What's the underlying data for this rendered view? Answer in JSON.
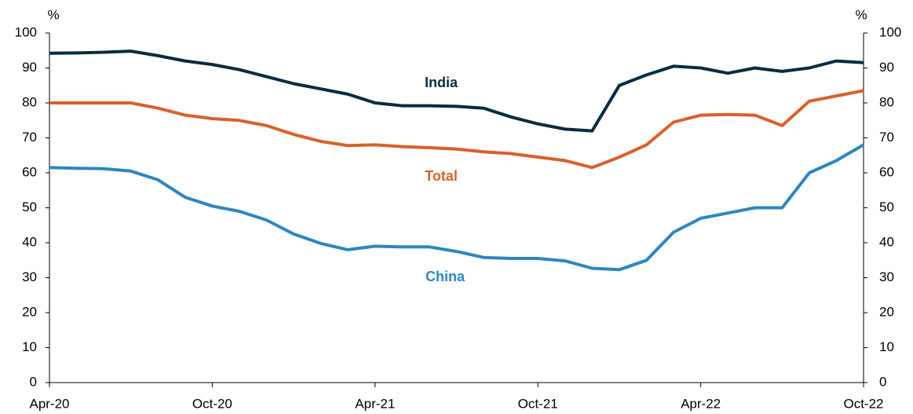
{
  "chart_data": {
    "type": "line",
    "y_unit_left": "%",
    "y_unit_right": "%",
    "categories": [
      "Apr-20",
      null,
      null,
      null,
      null,
      null,
      "Oct-20",
      null,
      null,
      null,
      null,
      null,
      "Apr-21",
      null,
      null,
      null,
      null,
      null,
      "Oct-21",
      null,
      null,
      null,
      null,
      null,
      "Apr-22",
      null,
      null,
      null,
      null,
      null,
      "Oct-22"
    ],
    "series": [
      {
        "name": "India",
        "color": "#0b2b40",
        "values": [
          94.2,
          94.3,
          94.5,
          94.8,
          93.5,
          92,
          91,
          89.5,
          87.5,
          85.5,
          84,
          82.5,
          80,
          79.2,
          79.2,
          79,
          78.5,
          76,
          74,
          72.5,
          72,
          85,
          88,
          90.5,
          90,
          88.5,
          90,
          89,
          90,
          92,
          91.5
        ]
      },
      {
        "name": "Total",
        "color": "#d9602b",
        "values": [
          80,
          80,
          80,
          80,
          78.5,
          76.5,
          75.5,
          75,
          73.5,
          71,
          69,
          67.8,
          68,
          67.5,
          67.2,
          66.8,
          66,
          65.5,
          64.5,
          63.5,
          61.5,
          64.5,
          68,
          74.5,
          76.5,
          76.7,
          76.5,
          73.5,
          80.5,
          82,
          83.5
        ]
      },
      {
        "name": "China",
        "color": "#2e86c1",
        "values": [
          61.5,
          61.3,
          61.2,
          60.5,
          58,
          53,
          50.5,
          49,
          46.5,
          42.5,
          39.8,
          38,
          39,
          38.8,
          38.8,
          37.5,
          35.8,
          35.5,
          35.5,
          34.8,
          32.7,
          32.3,
          35,
          43,
          47,
          48.5,
          50,
          50,
          60,
          63.5,
          68
        ]
      }
    ],
    "ylim": [
      0,
      100
    ],
    "yticks": [
      0,
      10,
      20,
      30,
      40,
      50,
      60,
      70,
      80,
      90,
      100
    ],
    "y2lim": [
      0,
      100
    ],
    "y2ticks": [
      0,
      10,
      20,
      30,
      40,
      50,
      60,
      70,
      80,
      90,
      100
    ],
    "legend": "inline"
  }
}
